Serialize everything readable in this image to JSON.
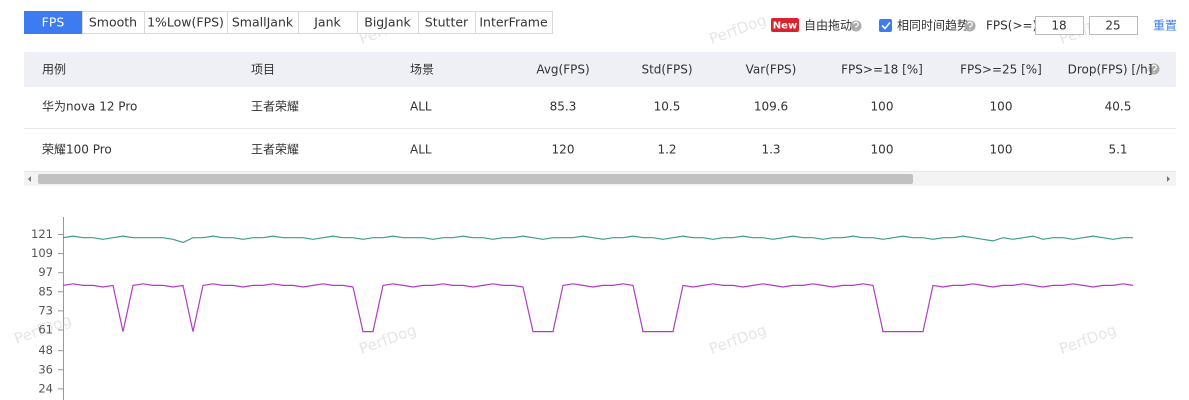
{
  "tabs": [
    "FPS",
    "Smooth",
    "1%Low(FPS)",
    "SmallJank",
    "Jank",
    "BigJank",
    "Stutter",
    "InterFrame"
  ],
  "controls": {
    "new_badge": "New",
    "free_drag": "自由拖动",
    "same_time_trend": "相同时间趋势",
    "fps_threshold_label": "FPS(>=)",
    "fps_threshold_1": 18,
    "fps_threshold_2": 25,
    "reset": "重置"
  },
  "table": {
    "columns": [
      "用例",
      "项目",
      "场景",
      "Avg(FPS)",
      "Std(FPS)",
      "Var(FPS)",
      "FPS>=18 [%]",
      "FPS>=25 [%]",
      "Drop(FPS) [/h]"
    ],
    "rows": [
      [
        "华为nova 12 Pro",
        "王者荣耀",
        "ALL",
        85.3,
        10.5,
        109.6,
        100,
        100,
        40.5
      ],
      [
        "荣耀100 Pro",
        "王者荣耀",
        "ALL",
        120,
        1.2,
        1.3,
        100,
        100,
        5.1
      ]
    ]
  },
  "watermark": "PerfDog",
  "chart_data": {
    "type": "line",
    "ylim": [
      17,
      132
    ],
    "yticks": [
      24,
      36,
      48,
      61,
      73,
      85,
      97,
      109,
      121
    ],
    "series": [
      {
        "color": "#3e9f78",
        "values": [
          119,
          120,
          119,
          119,
          118,
          119,
          120,
          119,
          119,
          119,
          119,
          118,
          116,
          119,
          119,
          120,
          119,
          119,
          118,
          119,
          119,
          120,
          119,
          119,
          119,
          118,
          119,
          120,
          119,
          119,
          118,
          119,
          119,
          120,
          119,
          119,
          119,
          118,
          119,
          119,
          120,
          119,
          119,
          118,
          119,
          119,
          120,
          119,
          118,
          119,
          119,
          119,
          120,
          119,
          118,
          119,
          119,
          120,
          119,
          119,
          118,
          119,
          120,
          119,
          119,
          118,
          119,
          119,
          120,
          119,
          119,
          118,
          119,
          120,
          119,
          119,
          118,
          119,
          119,
          120,
          119,
          119,
          118,
          119,
          120,
          119,
          119,
          118,
          119,
          119,
          120,
          119,
          118,
          117,
          119,
          118,
          119,
          120,
          118,
          119,
          119,
          118,
          119,
          120,
          119,
          118,
          119,
          119
        ]
      },
      {
        "color": "#b03cc2",
        "values": [
          89,
          90,
          89,
          89,
          88,
          89,
          60,
          89,
          90,
          89,
          89,
          88,
          89,
          60,
          89,
          90,
          89,
          89,
          88,
          89,
          89,
          90,
          89,
          89,
          88,
          89,
          90,
          89,
          89,
          88,
          60,
          60,
          89,
          90,
          89,
          88,
          89,
          89,
          90,
          89,
          89,
          88,
          89,
          90,
          89,
          89,
          88,
          60,
          60,
          60,
          89,
          90,
          89,
          88,
          89,
          89,
          90,
          89,
          60,
          60,
          60,
          60,
          89,
          88,
          89,
          90,
          89,
          89,
          88,
          89,
          90,
          89,
          88,
          89,
          89,
          90,
          89,
          88,
          89,
          89,
          90,
          89,
          60,
          60,
          60,
          60,
          60,
          89,
          88,
          89,
          89,
          90,
          89,
          88,
          89,
          89,
          90,
          89,
          88,
          89,
          89,
          90,
          89,
          88,
          89,
          89,
          90,
          89
        ]
      }
    ]
  }
}
